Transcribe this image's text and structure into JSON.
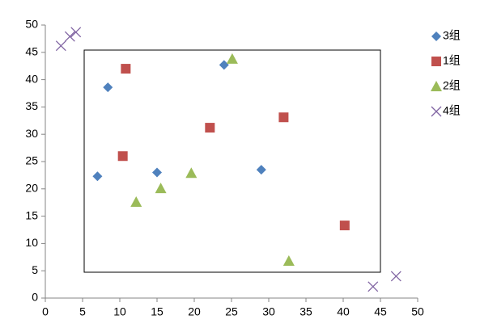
{
  "chart_data": {
    "type": "scatter",
    "series": [
      {
        "name": "3组",
        "color": "#4f81bd",
        "marker": "diamond",
        "x": [
          7,
          8.4,
          15,
          24,
          29
        ],
        "values": [
          22.3,
          38.6,
          23,
          42.7,
          23.5
        ]
      },
      {
        "name": "1组",
        "color": "#c0504d",
        "marker": "square",
        "x": [
          10.8,
          10.4,
          22.1,
          32,
          40.2
        ],
        "values": [
          42,
          26,
          31.2,
          33.1,
          13.3
        ]
      },
      {
        "name": "2组",
        "color": "#9bbb59",
        "marker": "triangle",
        "x": [
          12.2,
          15.5,
          19.6,
          25.1,
          32.7
        ],
        "values": [
          17.6,
          20.1,
          22.9,
          43.8,
          6.8
        ]
      },
      {
        "name": "4组",
        "color": "#8064a2",
        "marker": "cross",
        "x": [
          2.1,
          3.3,
          4.1,
          44,
          47.1
        ],
        "values": [
          46.2,
          47.9,
          48.7,
          2.1,
          4
        ]
      }
    ],
    "xlim": [
      0,
      50
    ],
    "xticks": [
      0,
      5,
      10,
      15,
      20,
      25,
      30,
      35,
      40,
      45,
      50
    ],
    "ylim": [
      0,
      50
    ],
    "yticks": [
      0,
      5,
      10,
      15,
      20,
      25,
      30,
      35,
      40,
      45,
      50
    ],
    "grid": false,
    "legend": "right"
  }
}
